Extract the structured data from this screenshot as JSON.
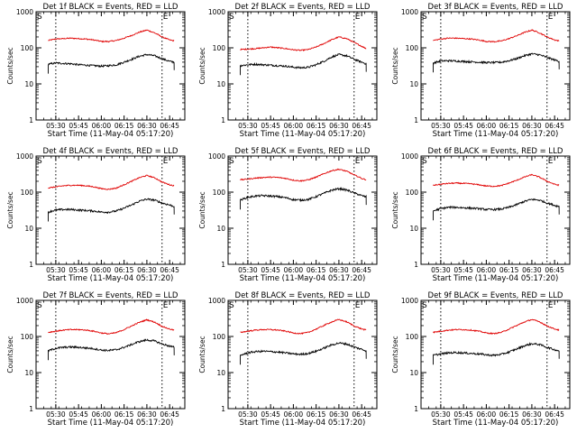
{
  "colors": {
    "events": "#000000",
    "lld": "#e00000",
    "axis": "#000000"
  },
  "shared": {
    "x_tick_labels": [
      "05:30",
      "05:45",
      "06:00",
      "06:15",
      "06:30",
      "06:45"
    ],
    "x_ticks_min": [
      13,
      28,
      43,
      58,
      73,
      88
    ],
    "xlim_min": [
      0,
      98
    ],
    "y_tick_labels": [
      "1",
      "10",
      "100",
      "1000"
    ],
    "y_ticks": [
      1,
      10,
      100,
      1000
    ],
    "ylim": [
      1,
      1000
    ],
    "y_scale": "log",
    "ylabel": "Counts/sec",
    "xlabel": "Start Time (11-May-04 05:17:20)",
    "marker_S": "S",
    "marker_E": "E",
    "marker_S_min": 13,
    "marker_E_min": 83,
    "data_start_min": 8,
    "data_end_min": 91
  },
  "chart_data": [
    {
      "type": "line",
      "title": "Det 1f BLACK = Events, RED = LLD",
      "series": [
        {
          "color": "#e00000",
          "x": [
            8,
            13,
            18,
            23,
            28,
            33,
            38,
            43,
            48,
            53,
            58,
            63,
            68,
            73,
            78,
            83,
            88,
            91
          ],
          "values": [
            160,
            175,
            180,
            185,
            180,
            175,
            165,
            150,
            150,
            160,
            185,
            220,
            270,
            310,
            260,
            200,
            165,
            155
          ]
        },
        {
          "color": "#000000",
          "x": [
            8,
            13,
            18,
            23,
            28,
            33,
            38,
            43,
            48,
            53,
            58,
            63,
            68,
            73,
            78,
            83,
            88,
            91
          ],
          "values": [
            35,
            38,
            37,
            36,
            34,
            33,
            32,
            31,
            32,
            34,
            40,
            48,
            58,
            65,
            60,
            50,
            42,
            40
          ]
        }
      ]
    },
    {
      "type": "line",
      "title": "Det 2f BLACK = Events, RED = LLD",
      "series": [
        {
          "color": "#e00000",
          "x": [
            8,
            13,
            18,
            23,
            28,
            33,
            38,
            43,
            48,
            53,
            58,
            63,
            68,
            73,
            78,
            83,
            88,
            91
          ],
          "values": [
            90,
            92,
            95,
            100,
            105,
            100,
            95,
            88,
            85,
            90,
            105,
            130,
            165,
            200,
            180,
            140,
            110,
            95
          ]
        },
        {
          "color": "#000000",
          "x": [
            8,
            13,
            18,
            23,
            28,
            33,
            38,
            43,
            48,
            53,
            58,
            63,
            68,
            73,
            78,
            83,
            88,
            91
          ],
          "values": [
            32,
            34,
            35,
            34,
            33,
            32,
            31,
            29,
            28,
            29,
            34,
            42,
            55,
            65,
            60,
            48,
            40,
            36
          ]
        }
      ]
    },
    {
      "type": "line",
      "title": "Det 3f BLACK = Events, RED = LLD",
      "series": [
        {
          "color": "#e00000",
          "x": [
            8,
            13,
            18,
            23,
            28,
            33,
            38,
            43,
            48,
            53,
            58,
            63,
            68,
            73,
            78,
            83,
            88,
            91
          ],
          "values": [
            160,
            175,
            185,
            185,
            180,
            175,
            165,
            150,
            148,
            155,
            180,
            215,
            265,
            310,
            260,
            200,
            165,
            155
          ]
        },
        {
          "color": "#000000",
          "x": [
            8,
            13,
            18,
            23,
            28,
            33,
            38,
            43,
            48,
            53,
            58,
            63,
            68,
            73,
            78,
            83,
            88,
            91
          ],
          "values": [
            38,
            43,
            44,
            43,
            42,
            41,
            40,
            39,
            39,
            40,
            44,
            50,
            60,
            68,
            64,
            54,
            46,
            42
          ]
        }
      ]
    },
    {
      "type": "line",
      "title": "Det 4f BLACK = Events, RED = LLD",
      "series": [
        {
          "color": "#e00000",
          "x": [
            8,
            13,
            18,
            23,
            28,
            33,
            38,
            43,
            48,
            53,
            58,
            63,
            68,
            73,
            78,
            83,
            88,
            91
          ],
          "values": [
            130,
            140,
            150,
            155,
            155,
            150,
            140,
            125,
            120,
            130,
            160,
            200,
            250,
            290,
            250,
            190,
            160,
            150
          ]
        },
        {
          "color": "#000000",
          "x": [
            8,
            13,
            18,
            23,
            28,
            33,
            38,
            43,
            48,
            53,
            58,
            63,
            68,
            73,
            78,
            83,
            88,
            91
          ],
          "values": [
            28,
            32,
            33,
            33,
            32,
            31,
            30,
            28,
            28,
            30,
            36,
            44,
            56,
            64,
            60,
            50,
            44,
            40
          ]
        }
      ]
    },
    {
      "type": "line",
      "title": "Det 5f BLACK = Events, RED = LLD",
      "series": [
        {
          "color": "#e00000",
          "x": [
            8,
            13,
            18,
            23,
            28,
            33,
            38,
            43,
            48,
            53,
            58,
            63,
            68,
            73,
            78,
            83,
            88,
            91
          ],
          "values": [
            220,
            230,
            245,
            255,
            260,
            255,
            240,
            215,
            205,
            220,
            260,
            320,
            390,
            430,
            380,
            300,
            240,
            220
          ]
        },
        {
          "color": "#000000",
          "x": [
            8,
            13,
            18,
            23,
            28,
            33,
            38,
            43,
            48,
            53,
            58,
            63,
            68,
            73,
            78,
            83,
            88,
            91
          ],
          "values": [
            60,
            72,
            78,
            80,
            78,
            75,
            70,
            62,
            60,
            63,
            75,
            92,
            112,
            125,
            115,
            95,
            80,
            74
          ]
        }
      ]
    },
    {
      "type": "line",
      "title": "Det 6f BLACK = Events, RED = LLD",
      "series": [
        {
          "color": "#e00000",
          "x": [
            8,
            13,
            18,
            23,
            28,
            33,
            38,
            43,
            48,
            53,
            58,
            63,
            68,
            73,
            78,
            83,
            88,
            91
          ],
          "values": [
            155,
            165,
            175,
            178,
            175,
            170,
            160,
            148,
            145,
            152,
            178,
            212,
            260,
            305,
            260,
            200,
            165,
            155
          ]
        },
        {
          "color": "#000000",
          "x": [
            8,
            13,
            18,
            23,
            28,
            33,
            38,
            43,
            48,
            53,
            58,
            63,
            68,
            73,
            78,
            83,
            88,
            91
          ],
          "values": [
            30,
            35,
            38,
            38,
            37,
            36,
            35,
            33,
            33,
            34,
            38,
            45,
            55,
            63,
            60,
            50,
            43,
            40
          ]
        }
      ]
    },
    {
      "type": "line",
      "title": "Det 7f BLACK = Events, RED = LLD",
      "series": [
        {
          "color": "#e00000",
          "x": [
            8,
            13,
            18,
            23,
            28,
            33,
            38,
            43,
            48,
            53,
            58,
            63,
            68,
            73,
            78,
            83,
            88,
            91
          ],
          "values": [
            130,
            140,
            150,
            155,
            155,
            150,
            140,
            125,
            118,
            128,
            155,
            195,
            245,
            290,
            250,
            190,
            160,
            150
          ]
        },
        {
          "color": "#000000",
          "x": [
            8,
            13,
            18,
            23,
            28,
            33,
            38,
            43,
            48,
            53,
            58,
            63,
            68,
            73,
            78,
            83,
            88,
            91
          ],
          "values": [
            40,
            47,
            50,
            51,
            50,
            48,
            46,
            42,
            41,
            43,
            50,
            60,
            72,
            80,
            75,
            62,
            54,
            50
          ]
        }
      ]
    },
    {
      "type": "line",
      "title": "Det 8f BLACK = Events, RED = LLD",
      "series": [
        {
          "color": "#e00000",
          "x": [
            8,
            13,
            18,
            23,
            28,
            33,
            38,
            43,
            48,
            53,
            58,
            63,
            68,
            73,
            78,
            83,
            88,
            91
          ],
          "values": [
            130,
            140,
            150,
            155,
            155,
            150,
            140,
            125,
            120,
            130,
            160,
            200,
            250,
            295,
            255,
            195,
            162,
            150
          ]
        },
        {
          "color": "#000000",
          "x": [
            8,
            13,
            18,
            23,
            28,
            33,
            38,
            43,
            48,
            53,
            58,
            63,
            68,
            73,
            78,
            83,
            88,
            91
          ],
          "values": [
            30,
            35,
            38,
            39,
            38,
            37,
            35,
            33,
            32,
            34,
            39,
            47,
            58,
            66,
            62,
            51,
            44,
            40
          ]
        }
      ]
    },
    {
      "type": "line",
      "title": "Det 9f BLACK = Events, RED = LLD",
      "series": [
        {
          "color": "#e00000",
          "x": [
            8,
            13,
            18,
            23,
            28,
            33,
            38,
            43,
            48,
            53,
            58,
            63,
            68,
            73,
            78,
            83,
            88,
            91
          ],
          "values": [
            130,
            140,
            150,
            155,
            155,
            150,
            140,
            125,
            120,
            130,
            160,
            200,
            250,
            295,
            255,
            195,
            162,
            150
          ]
        },
        {
          "color": "#000000",
          "x": [
            8,
            13,
            18,
            23,
            28,
            33,
            38,
            43,
            48,
            53,
            58,
            63,
            68,
            73,
            78,
            83,
            88,
            91
          ],
          "values": [
            30,
            33,
            35,
            36,
            35,
            34,
            33,
            31,
            30,
            32,
            37,
            45,
            55,
            63,
            60,
            50,
            43,
            40
          ]
        }
      ]
    }
  ]
}
